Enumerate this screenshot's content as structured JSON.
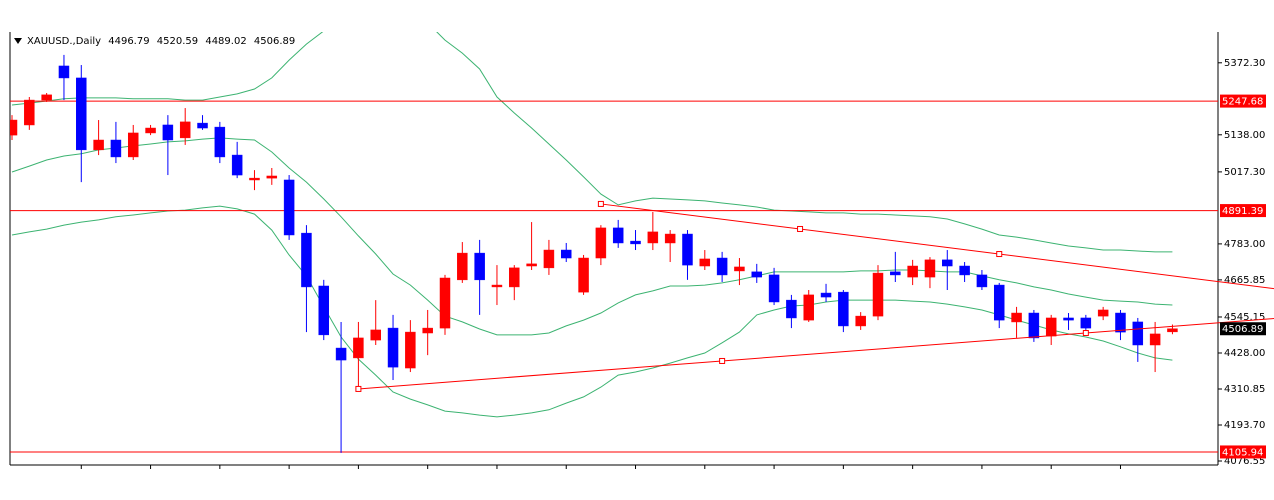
{
  "chart_data": {
    "type": "candlestick",
    "title": "XAUUSD.,Daily",
    "up_color": "#ff0000",
    "down_color": "#0000ff",
    "open": [
      5137,
      5170,
      5251,
      5362,
      5323,
      5089,
      5121,
      5066,
      5144,
      5170,
      5128,
      5176,
      5163,
      5072,
      4991,
      4997,
      4991,
      4818,
      4646,
      4444,
      4412,
      4470,
      4509,
      4379,
      4493,
      4509,
      4666,
      4753,
      4643,
      4643,
      4711,
      4705,
      4763,
      4626,
      4737,
      4835,
      4792,
      4786,
      4786,
      4815,
      4711,
      4737,
      4695,
      4692,
      4682,
      4600,
      4535,
      4623,
      4626,
      4516,
      4548,
      4692,
      4675,
      4675,
      4731,
      4711,
      4682,
      4649,
      4529,
      4558,
      4483,
      4542,
      4542,
      4548,
      4558,
      4529,
      4454,
      4496.79
    ],
    "high": [
      5202,
      5261,
      5274,
      5398,
      5365,
      5186,
      5180,
      5170,
      5170,
      5202,
      5225,
      5202,
      5180,
      5115,
      5023,
      5030,
      5007,
      4844,
      4666,
      4529,
      4529,
      4600,
      4552,
      4535,
      4568,
      4682,
      4789,
      4796,
      4714,
      4714,
      4854,
      4796,
      4786,
      4747,
      4844,
      4861,
      4828,
      4887,
      4828,
      4828,
      4763,
      4757,
      4737,
      4718,
      4705,
      4617,
      4633,
      4653,
      4633,
      4561,
      4714,
      4757,
      4731,
      4740,
      4763,
      4724,
      4698,
      4656,
      4578,
      4568,
      4552,
      4558,
      4552,
      4578,
      4568,
      4542,
      4529,
      4520.59
    ],
    "low": [
      5121,
      5154,
      5245,
      5251,
      4984,
      5072,
      5046,
      5056,
      5137,
      5007,
      5105,
      5154,
      5046,
      4997,
      4958,
      4975,
      4796,
      4496,
      4470,
      4103,
      4314,
      4454,
      4340,
      4366,
      4421,
      4487,
      4656,
      4552,
      4584,
      4600,
      4698,
      4682,
      4724,
      4617,
      4714,
      4770,
      4763,
      4763,
      4724,
      4666,
      4698,
      4659,
      4649,
      4656,
      4584,
      4509,
      4529,
      4594,
      4496,
      4503,
      4535,
      4659,
      4649,
      4639,
      4633,
      4659,
      4633,
      4509,
      4477,
      4464,
      4454,
      4503,
      4503,
      4535,
      4470,
      4399,
      4366,
      4489.02
    ],
    "close": [
      5186,
      5251,
      5268,
      5323,
      5089,
      5121,
      5066,
      5144,
      5160,
      5121,
      5180,
      5160,
      5066,
      5007,
      4997,
      5004,
      4812,
      4643,
      4487,
      4405,
      4477,
      4503,
      4382,
      4496,
      4509,
      4672,
      4753,
      4666,
      4649,
      4705,
      4718,
      4763,
      4737,
      4737,
      4835,
      4786,
      4783,
      4822,
      4815,
      4714,
      4734,
      4682,
      4708,
      4675,
      4594,
      4542,
      4617,
      4610,
      4516,
      4548,
      4688,
      4682,
      4711,
      4731,
      4711,
      4682,
      4643,
      4535,
      4558,
      4477,
      4542,
      4535,
      4509,
      4568,
      4496,
      4454,
      4490,
      4506.89
    ],
    "bands": [
      {
        "color": "#3cb371",
        "values": [
          5235,
          5241,
          5248,
          5255,
          5258,
          5258,
          5258,
          5255,
          5255,
          5255,
          5251,
          5251,
          5261,
          5271,
          5287,
          5323,
          5381,
          5433,
          5476,
          5512,
          5544,
          5554,
          5554,
          5544,
          5502,
          5446,
          5404,
          5352,
          5261,
          5209,
          5160,
          5108,
          5056,
          5001,
          4945,
          4910,
          4923,
          4932,
          4929,
          4926,
          4923,
          4916,
          4910,
          4903,
          4893,
          4890,
          4887,
          4884,
          4884,
          4880,
          4880,
          4877,
          4874,
          4871,
          4864,
          4848,
          4831,
          4812,
          4805,
          4796,
          4786,
          4776,
          4770,
          4763,
          4763,
          4760,
          4757,
          4757
        ]
      },
      {
        "color": "#3cb371",
        "values": [
          5017,
          5036,
          5056,
          5069,
          5076,
          5089,
          5095,
          5102,
          5108,
          5115,
          5118,
          5124,
          5128,
          5124,
          5121,
          5082,
          5030,
          4984,
          4929,
          4871,
          4809,
          4750,
          4685,
          4649,
          4600,
          4548,
          4529,
          4506,
          4487,
          4487,
          4487,
          4493,
          4516,
          4535,
          4558,
          4591,
          4617,
          4630,
          4646,
          4646,
          4649,
          4656,
          4666,
          4679,
          4692,
          4692,
          4692,
          4692,
          4692,
          4695,
          4695,
          4698,
          4698,
          4695,
          4692,
          4692,
          4679,
          4666,
          4656,
          4643,
          4633,
          4620,
          4610,
          4600,
          4597,
          4594,
          4587,
          4584
        ]
      },
      {
        "color": "#3cb371",
        "values": [
          4812,
          4822,
          4831,
          4844,
          4854,
          4861,
          4871,
          4877,
          4884,
          4890,
          4893,
          4900,
          4906,
          4897,
          4880,
          4828,
          4747,
          4679,
          4578,
          4480,
          4408,
          4356,
          4301,
          4278,
          4259,
          4239,
          4233,
          4226,
          4220,
          4226,
          4233,
          4243,
          4265,
          4285,
          4317,
          4356,
          4366,
          4379,
          4395,
          4412,
          4428,
          4461,
          4496,
          4552,
          4568,
          4581,
          4584,
          4594,
          4600,
          4600,
          4600,
          4600,
          4597,
          4594,
          4587,
          4578,
          4568,
          4552,
          4535,
          4519,
          4503,
          4490,
          4480,
          4467,
          4448,
          4428,
          4412,
          4405
        ]
      }
    ],
    "levels": [
      {
        "value": 5247.68,
        "color": "#ff0000"
      },
      {
        "value": 4891.39,
        "color": "#ff0000"
      },
      {
        "value": 4105.94,
        "color": "#ff0000"
      }
    ],
    "trendlines": [
      {
        "color": "#ff0000",
        "start": {
          "index": 34,
          "price": 4913
        },
        "end": {
          "index": 57,
          "price": 4750
        }
      },
      {
        "color": "#ff0000",
        "start": {
          "index": 20,
          "price": 4311
        },
        "end": {
          "index": 62,
          "price": 4493
        }
      }
    ],
    "ylim": [
      4063.5,
      5472.5
    ],
    "yticks": [
      {
        "value": 5372.3,
        "label": "5372.30"
      },
      {
        "value": 5138,
        "label": "5138.00"
      },
      {
        "value": 5017.3,
        "label": "5017.30"
      },
      {
        "value": 4783,
        "label": "4783.00"
      },
      4665.85,
      4545.15,
      {
        "value": 4428,
        "label": "4428.00"
      },
      4310.85,
      {
        "value": 4193.7,
        "label": "4193.70"
      },
      4076.55
    ]
  }
}
